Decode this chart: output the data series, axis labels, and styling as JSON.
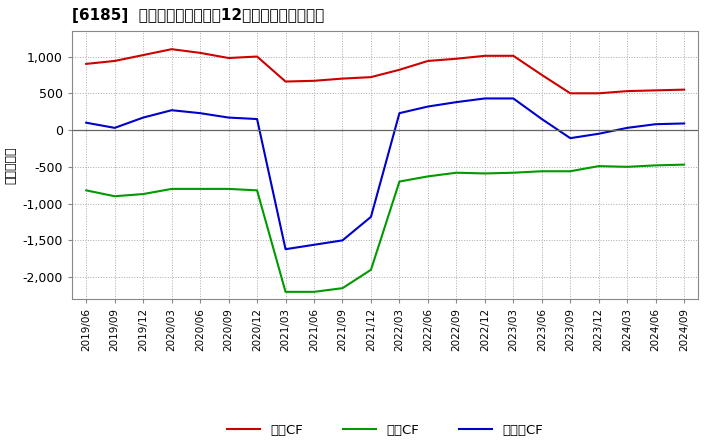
{
  "title": "[6185]  キャッシュフローの12か月移動合計の推移",
  "ylabel": "（百万円）",
  "background_color": "#ffffff",
  "plot_bg_color": "#ffffff",
  "grid_color": "#aaaaaa",
  "x_labels": [
    "2019/06",
    "2019/09",
    "2019/12",
    "2020/03",
    "2020/06",
    "2020/09",
    "2020/12",
    "2021/03",
    "2021/06",
    "2021/09",
    "2021/12",
    "2022/03",
    "2022/06",
    "2022/09",
    "2022/12",
    "2023/03",
    "2023/06",
    "2023/09",
    "2023/12",
    "2024/03",
    "2024/06",
    "2024/09"
  ],
  "operating_cf": [
    900,
    940,
    1020,
    1100,
    1050,
    980,
    1000,
    660,
    670,
    700,
    720,
    820,
    940,
    970,
    1010,
    1010,
    750,
    500,
    500,
    530,
    540,
    550
  ],
  "investing_cf": [
    -820,
    -900,
    -870,
    -800,
    -800,
    -800,
    -820,
    -2200,
    -2200,
    -2150,
    -1900,
    -700,
    -630,
    -580,
    -590,
    -580,
    -560,
    -560,
    -490,
    -500,
    -480,
    -470
  ],
  "free_cf": [
    100,
    30,
    170,
    270,
    230,
    170,
    150,
    -1620,
    -1560,
    -1500,
    -1180,
    230,
    320,
    380,
    430,
    430,
    150,
    -110,
    -50,
    30,
    80,
    90
  ],
  "operating_color": "#cc0000",
  "investing_color": "#009900",
  "free_color": "#0000cc",
  "ylim": [
    -2300,
    1350
  ],
  "yticks": [
    -2000,
    -1500,
    -1000,
    -500,
    0,
    500,
    1000
  ],
  "legend_labels": [
    "営業CF",
    "投資CF",
    "フリーCF"
  ]
}
